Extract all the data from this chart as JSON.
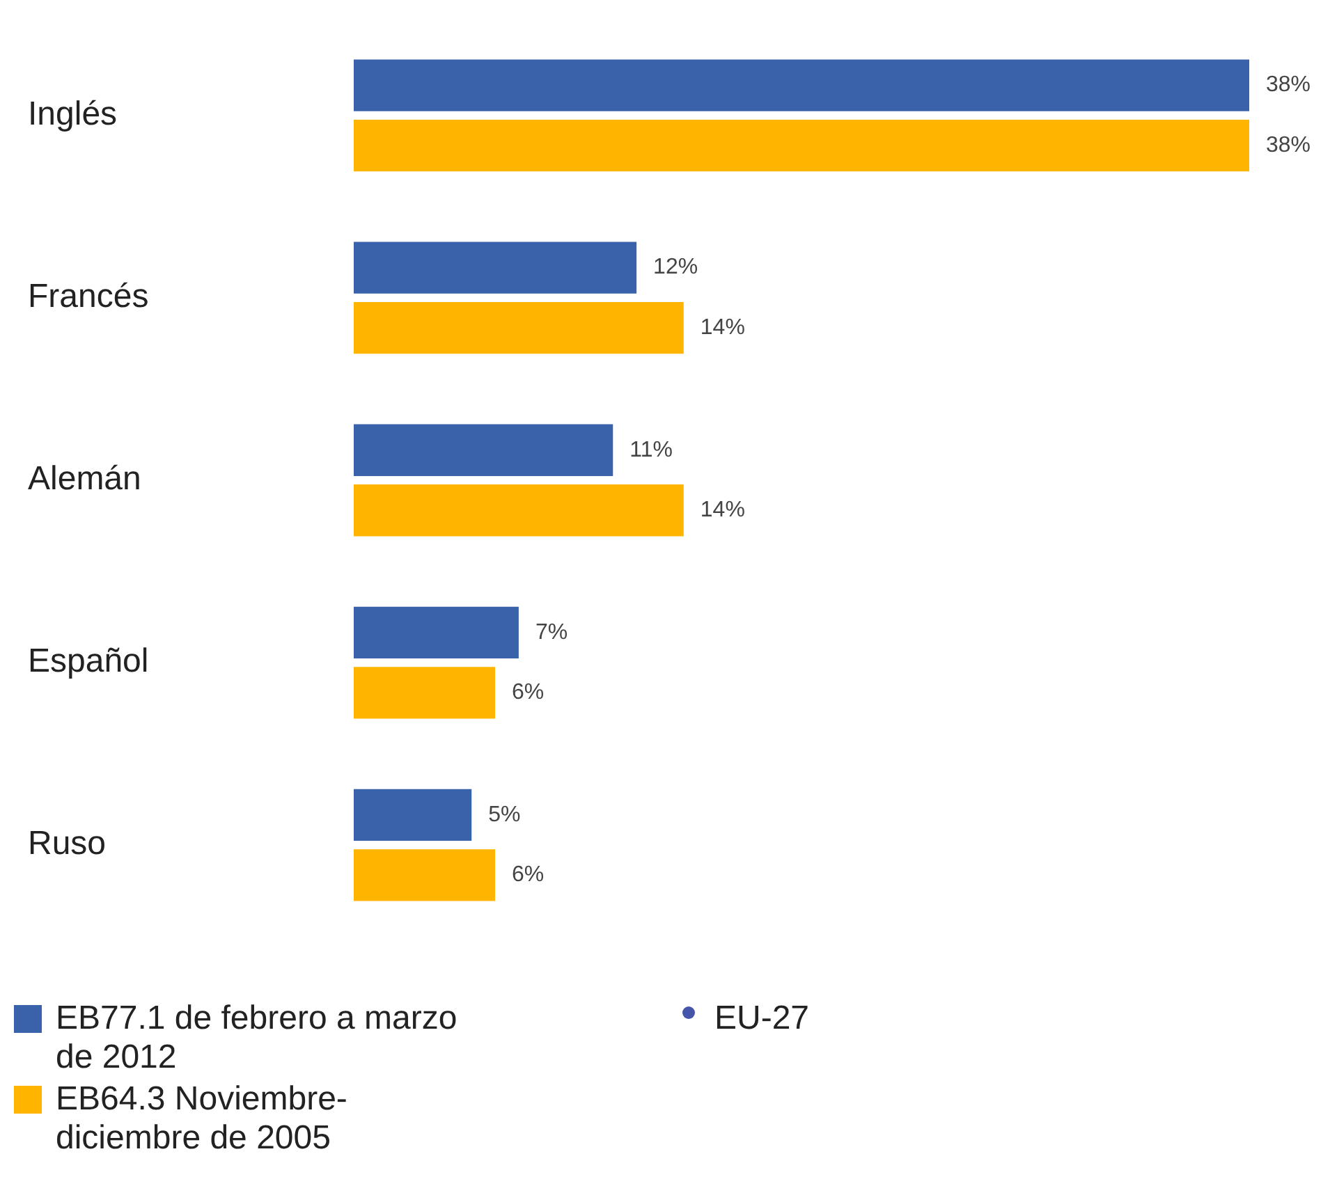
{
  "chart_data": {
    "type": "bar",
    "orientation": "horizontal",
    "categories": [
      "Inglés",
      "Francés",
      "Alemán",
      "Español",
      "Ruso"
    ],
    "series": [
      {
        "name": "EB77.1 de febrero a marzo de 2012",
        "color": "#3a62ab",
        "values": [
          38,
          12,
          11,
          7,
          5
        ],
        "value_labels": [
          "38%",
          "12%",
          "11%",
          "7%",
          "5%"
        ]
      },
      {
        "name": "EB64.3 Noviembre-diciembre de 2005",
        "color": "#ffb400",
        "values": [
          38,
          14,
          14,
          6,
          6
        ],
        "value_labels": [
          "38%",
          "14%",
          "14%",
          "6%",
          "6%"
        ]
      }
    ],
    "annotations": [
      "EU-27"
    ],
    "legend": "bottom left",
    "grid": false,
    "tick_labels": "y"
  }
}
